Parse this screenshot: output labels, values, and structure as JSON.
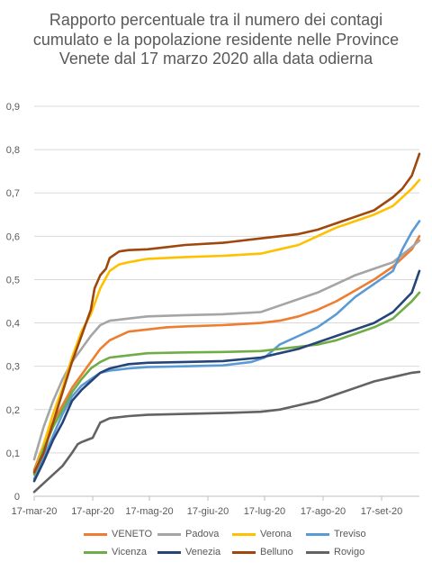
{
  "chart_data": {
    "type": "line",
    "title": "Rapporto percentuale tra il numero dei contagi cumulato e la popolazione residente nelle Province Venete dal 17 marzo 2020 alla data odierna",
    "xlabel": "",
    "ylabel": "",
    "x_tick_labels": [
      "17-mar-20",
      "17-apr-20",
      "17-mag-20",
      "17-giu-20",
      "17-lug-20",
      "17-ago-20",
      "17-set-20"
    ],
    "x_tick_days": [
      0,
      31,
      61,
      92,
      122,
      153,
      184
    ],
    "y_ticks": [
      "0",
      "0,1",
      "0,2",
      "0,3",
      "0,4",
      "0,5",
      "0,6",
      "0,7",
      "0,8",
      "0,9"
    ],
    "xlim_days": [
      0,
      204
    ],
    "ylim": [
      0,
      0.9
    ],
    "grid": true,
    "legend_position": "bottom",
    "series": [
      {
        "name": "VENETO",
        "color": "#ED7D31",
        "x": [
          0,
          5,
          10,
          15,
          20,
          25,
          30,
          35,
          40,
          50,
          60,
          70,
          80,
          100,
          120,
          130,
          140,
          150,
          160,
          170,
          180,
          190,
          200,
          204
        ],
        "y": [
          0.06,
          0.12,
          0.17,
          0.21,
          0.25,
          0.28,
          0.31,
          0.34,
          0.36,
          0.38,
          0.385,
          0.39,
          0.392,
          0.395,
          0.4,
          0.405,
          0.415,
          0.43,
          0.45,
          0.475,
          0.5,
          0.53,
          0.57,
          0.6
        ]
      },
      {
        "name": "Padova",
        "color": "#A5A5A5",
        "x": [
          0,
          5,
          10,
          15,
          20,
          25,
          30,
          35,
          40,
          50,
          60,
          80,
          100,
          120,
          130,
          140,
          150,
          160,
          170,
          180,
          190,
          200,
          204
        ],
        "y": [
          0.085,
          0.16,
          0.22,
          0.27,
          0.31,
          0.34,
          0.37,
          0.395,
          0.405,
          0.41,
          0.415,
          0.418,
          0.42,
          0.425,
          0.44,
          0.455,
          0.47,
          0.49,
          0.51,
          0.525,
          0.54,
          0.575,
          0.59
        ]
      },
      {
        "name": "Verona",
        "color": "#FFC000",
        "x": [
          0,
          5,
          10,
          15,
          20,
          25,
          30,
          35,
          40,
          45,
          50,
          60,
          70,
          80,
          100,
          120,
          130,
          140,
          150,
          160,
          170,
          180,
          190,
          200,
          204
        ],
        "y": [
          0.05,
          0.12,
          0.19,
          0.25,
          0.32,
          0.38,
          0.42,
          0.48,
          0.52,
          0.535,
          0.54,
          0.548,
          0.55,
          0.552,
          0.555,
          0.56,
          0.57,
          0.58,
          0.6,
          0.62,
          0.635,
          0.65,
          0.67,
          0.71,
          0.73
        ]
      },
      {
        "name": "Treviso",
        "color": "#5B9BD5",
        "x": [
          0,
          5,
          10,
          15,
          20,
          25,
          30,
          35,
          40,
          50,
          60,
          80,
          100,
          115,
          122,
          130,
          140,
          150,
          160,
          170,
          180,
          190,
          195,
          200,
          204
        ],
        "y": [
          0.04,
          0.09,
          0.14,
          0.19,
          0.23,
          0.255,
          0.27,
          0.285,
          0.29,
          0.295,
          0.298,
          0.3,
          0.302,
          0.31,
          0.32,
          0.35,
          0.37,
          0.39,
          0.42,
          0.46,
          0.49,
          0.52,
          0.57,
          0.61,
          0.635
        ]
      },
      {
        "name": "Vicenza",
        "color": "#70AD47",
        "x": [
          0,
          5,
          10,
          15,
          20,
          25,
          30,
          35,
          40,
          50,
          60,
          80,
          100,
          120,
          130,
          140,
          150,
          160,
          170,
          180,
          190,
          200,
          204
        ],
        "y": [
          0.05,
          0.11,
          0.16,
          0.2,
          0.24,
          0.27,
          0.295,
          0.31,
          0.32,
          0.325,
          0.33,
          0.332,
          0.333,
          0.335,
          0.34,
          0.345,
          0.35,
          0.36,
          0.375,
          0.39,
          0.41,
          0.45,
          0.47
        ]
      },
      {
        "name": "Venezia",
        "color": "#264478",
        "x": [
          0,
          5,
          10,
          15,
          20,
          25,
          30,
          35,
          40,
          50,
          60,
          80,
          100,
          120,
          130,
          140,
          150,
          160,
          170,
          180,
          190,
          200,
          204
        ],
        "y": [
          0.035,
          0.08,
          0.13,
          0.17,
          0.22,
          0.245,
          0.265,
          0.285,
          0.295,
          0.305,
          0.308,
          0.31,
          0.312,
          0.32,
          0.33,
          0.34,
          0.355,
          0.37,
          0.385,
          0.4,
          0.425,
          0.47,
          0.52
        ]
      },
      {
        "name": "Belluno",
        "color": "#9E480E",
        "x": [
          0,
          5,
          10,
          15,
          20,
          25,
          30,
          32,
          35,
          38,
          40,
          45,
          50,
          60,
          70,
          80,
          100,
          120,
          130,
          140,
          150,
          160,
          170,
          180,
          190,
          195,
          200,
          204
        ],
        "y": [
          0.055,
          0.1,
          0.17,
          0.24,
          0.31,
          0.37,
          0.43,
          0.48,
          0.51,
          0.525,
          0.55,
          0.565,
          0.568,
          0.57,
          0.575,
          0.58,
          0.585,
          0.595,
          0.6,
          0.605,
          0.615,
          0.63,
          0.645,
          0.66,
          0.69,
          0.71,
          0.74,
          0.79
        ]
      },
      {
        "name": "Rovigo",
        "color": "#636363",
        "x": [
          0,
          5,
          10,
          15,
          20,
          23,
          25,
          28,
          31,
          35,
          40,
          50,
          60,
          80,
          100,
          120,
          130,
          140,
          150,
          160,
          170,
          180,
          190,
          200,
          204
        ],
        "y": [
          0.01,
          0.03,
          0.05,
          0.07,
          0.1,
          0.12,
          0.125,
          0.13,
          0.135,
          0.17,
          0.18,
          0.185,
          0.188,
          0.19,
          0.192,
          0.195,
          0.2,
          0.21,
          0.22,
          0.235,
          0.25,
          0.265,
          0.275,
          0.285,
          0.287
        ]
      }
    ]
  }
}
